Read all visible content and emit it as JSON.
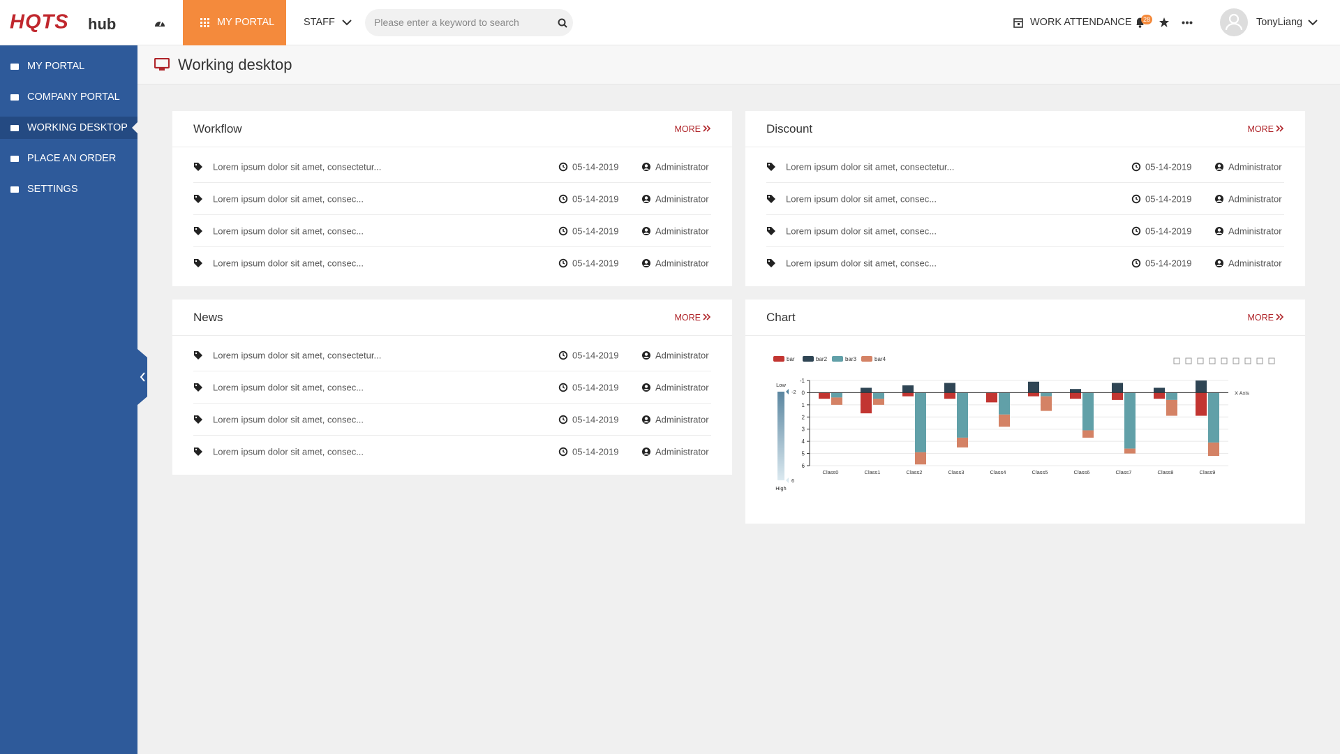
{
  "header": {
    "logo": "HQTS",
    "logo_sub": "hub",
    "nav": [
      "MY PORTAL",
      "STAFF"
    ],
    "search_placeholder": "Please enter a keyword to search",
    "work_attendance": "WORK ATTENDANCE",
    "notification_count": 28,
    "user": "TonyLiang"
  },
  "sidebar": {
    "items": [
      "MY PORTAL",
      "COMPANY PORTAL",
      "WORKING DESKTOP",
      "PLACE AN ORDER",
      "SETTINGS"
    ],
    "active": 2
  },
  "page_title": "Working desktop",
  "panels": [
    {
      "title": "Workflow",
      "more": "MORE",
      "rows": [
        {
          "text": "Lorem ipsum dolor sit amet, consectetur...",
          "date": "05-14-2019",
          "author": "Administrator"
        },
        {
          "text": "Lorem ipsum dolor sit amet, consec...",
          "date": "05-14-2019",
          "author": "Administrator"
        },
        {
          "text": "Lorem ipsum dolor sit amet, consec...",
          "date": "05-14-2019",
          "author": "Administrator"
        },
        {
          "text": "Lorem ipsum dolor sit amet, consec...",
          "date": "05-14-2019",
          "author": "Administrator"
        }
      ]
    },
    {
      "title": "Discount",
      "more": "MORE",
      "rows": [
        {
          "text": "Lorem ipsum dolor sit amet, consectetur...",
          "date": "05-14-2019",
          "author": "Administrator"
        },
        {
          "text": "Lorem ipsum dolor sit amet, consec...",
          "date": "05-14-2019",
          "author": "Administrator"
        },
        {
          "text": "Lorem ipsum dolor sit amet, consec...",
          "date": "05-14-2019",
          "author": "Administrator"
        },
        {
          "text": "Lorem ipsum dolor sit amet, consec...",
          "date": "05-14-2019",
          "author": "Administrator"
        }
      ]
    },
    {
      "title": "News",
      "more": "MORE",
      "rows": [
        {
          "text": "Lorem ipsum dolor sit amet, consectetur...",
          "date": "05-14-2019",
          "author": "Administrator"
        },
        {
          "text": "Lorem ipsum dolor sit amet, consec...",
          "date": "05-14-2019",
          "author": "Administrator"
        },
        {
          "text": "Lorem ipsum dolor sit amet, consec...",
          "date": "05-14-2019",
          "author": "Administrator"
        },
        {
          "text": "Lorem ipsum dolor sit amet, consec...",
          "date": "05-14-2019",
          "author": "Administrator"
        }
      ]
    },
    {
      "title": "Chart",
      "more": "MORE"
    }
  ],
  "chart_data": {
    "type": "bar",
    "x_label": "X Axis",
    "categories": [
      "Class0",
      "Class1",
      "Class2",
      "Class3",
      "Class4",
      "Class5",
      "Class6",
      "Class7",
      "Class8",
      "Class9"
    ],
    "series": [
      {
        "name": "bar",
        "color": "#c23531",
        "stack": "one",
        "values": [
          0.5,
          1.7,
          0.3,
          0.5,
          0.8,
          0.3,
          0.5,
          0.6,
          0.5,
          1.9
        ]
      },
      {
        "name": "bar2",
        "color": "#2f4554",
        "stack": "one",
        "values": [
          0,
          -0.4,
          -0.6,
          -0.8,
          0,
          -0.9,
          -0.3,
          -0.8,
          -0.4,
          -1.0
        ]
      },
      {
        "name": "bar3",
        "color": "#61a0a8",
        "stack": "two",
        "values": [
          0.4,
          0.5,
          4.9,
          3.7,
          1.8,
          0.3,
          3.1,
          4.6,
          0.6,
          4.1
        ]
      },
      {
        "name": "bar4",
        "color": "#d48265",
        "stack": "two",
        "values": [
          0.6,
          0.5,
          1.0,
          0.8,
          1.0,
          1.2,
          0.6,
          0.4,
          1.3,
          1.1
        ]
      }
    ],
    "ylim": [
      -1,
      6
    ],
    "yticks": [
      -1,
      0,
      1,
      2,
      3,
      4,
      5,
      6
    ],
    "inverse": true,
    "grid": true,
    "visual_map": {
      "range": [
        -2,
        6
      ],
      "low_label": "Low",
      "high_label": "High"
    }
  }
}
